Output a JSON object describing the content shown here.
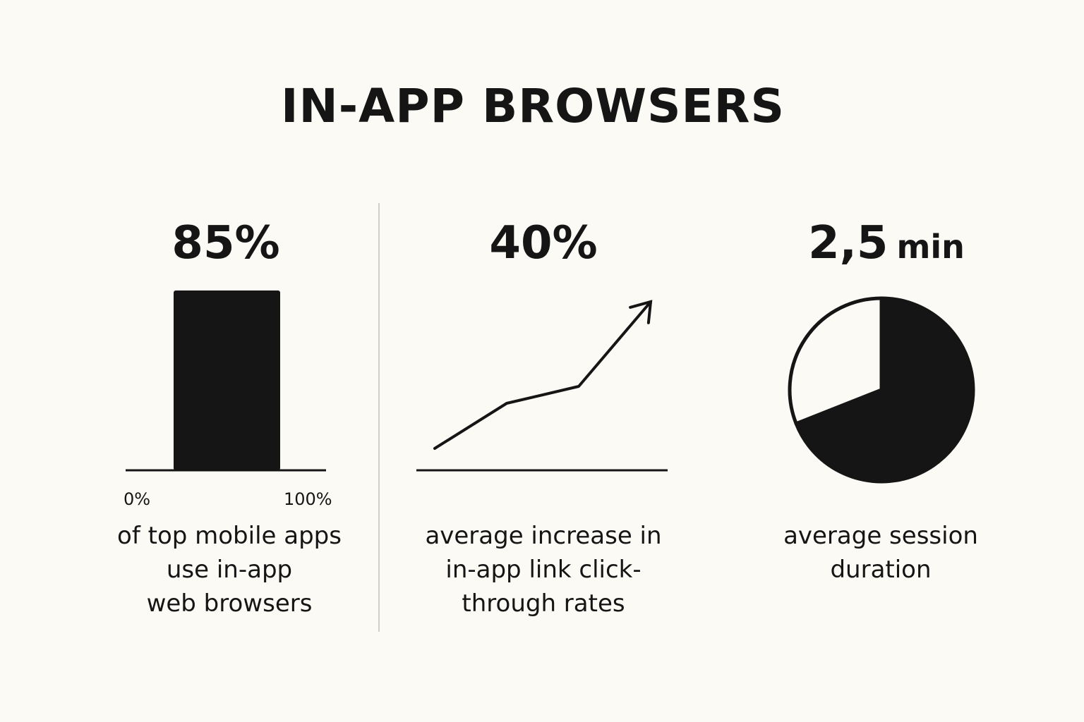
{
  "title": "IN-APP BROWSERS",
  "colors": {
    "ink": "#151515",
    "background": "#fbfaf5",
    "divider": "#cfcfcf"
  },
  "panels": [
    {
      "stat": "85%",
      "caption_lines": [
        "of top mobile apps",
        "use in-app",
        "web browsers"
      ]
    },
    {
      "stat": "40%",
      "caption_lines": [
        "average increase in",
        "in-app link click-",
        "through rates"
      ]
    },
    {
      "stat_value": "2,5",
      "stat_unit": "min",
      "caption_lines": [
        "average session",
        "duration"
      ]
    }
  ],
  "chart_data": [
    {
      "type": "bar",
      "values": [
        85
      ],
      "xlim": [
        0,
        100
      ],
      "tick_labels": [
        "0%",
        "100%"
      ]
    },
    {
      "type": "line",
      "x": [
        0,
        1,
        2,
        3
      ],
      "y": [
        1.0,
        1.8,
        2.1,
        3.6
      ],
      "arrow_end": true
    },
    {
      "type": "pie",
      "values": [
        0.69,
        0.31
      ],
      "filled": [
        true,
        false
      ]
    }
  ]
}
